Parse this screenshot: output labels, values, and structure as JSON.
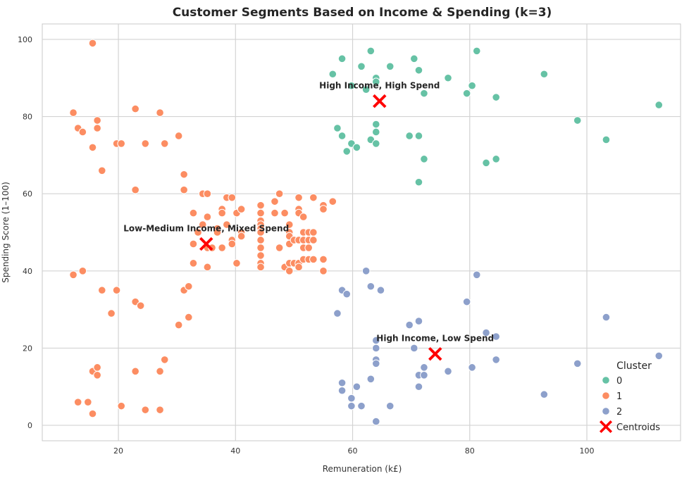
{
  "chart_data": {
    "type": "scatter",
    "title": "Customer Segments Based on Income & Spending (k=3)",
    "xlabel": "Remuneration (k£)",
    "ylabel": "Spending Score (1–100)",
    "xlim": [
      7,
      116
    ],
    "ylim": [
      -4,
      104
    ],
    "xticks": [
      20,
      40,
      60,
      80,
      100
    ],
    "yticks": [
      0,
      20,
      40,
      60,
      80,
      100
    ],
    "grid": true,
    "legend": {
      "title": "Cluster",
      "placement": "bottom-right",
      "entries": [
        {
          "label": "0",
          "color": "#66c2a5",
          "marker": "circle"
        },
        {
          "label": "1",
          "color": "#fc8d62",
          "marker": "circle"
        },
        {
          "label": "2",
          "color": "#8da0cb",
          "marker": "circle"
        },
        {
          "label": "Centroids",
          "color": "#ff0000",
          "marker": "x"
        }
      ]
    },
    "series": [
      {
        "name": "0",
        "color": "#66c2a5",
        "points": [
          [
            56.6,
            91
          ],
          [
            58.2,
            95
          ],
          [
            59.8,
            88
          ],
          [
            61.5,
            93
          ],
          [
            63.1,
            97
          ],
          [
            64.0,
            90
          ],
          [
            64.0,
            89
          ],
          [
            62.3,
            87
          ],
          [
            66.4,
            93
          ],
          [
            70.5,
            95
          ],
          [
            71.3,
            92
          ],
          [
            72.2,
            86
          ],
          [
            76.3,
            90
          ],
          [
            79.5,
            86
          ],
          [
            80.4,
            88
          ],
          [
            81.2,
            97
          ],
          [
            84.5,
            85
          ],
          [
            92.7,
            91
          ],
          [
            98.4,
            79
          ],
          [
            103.3,
            74
          ],
          [
            112.3,
            83
          ],
          [
            57.4,
            77
          ],
          [
            58.2,
            75
          ],
          [
            59.0,
            71
          ],
          [
            59.8,
            73
          ],
          [
            60.7,
            72
          ],
          [
            63.1,
            74
          ],
          [
            64.0,
            73
          ],
          [
            64.0,
            76
          ],
          [
            64.0,
            78
          ],
          [
            69.7,
            75
          ],
          [
            71.3,
            75
          ],
          [
            71.3,
            63
          ],
          [
            72.2,
            69
          ],
          [
            82.8,
            68
          ],
          [
            84.5,
            69
          ]
        ]
      },
      {
        "name": "1",
        "color": "#fc8d62",
        "points": [
          [
            12.3,
            81
          ],
          [
            13.1,
            77
          ],
          [
            13.9,
            76
          ],
          [
            15.6,
            99
          ],
          [
            16.4,
            79
          ],
          [
            16.4,
            77
          ],
          [
            15.6,
            72
          ],
          [
            17.2,
            66
          ],
          [
            19.7,
            73
          ],
          [
            20.5,
            73
          ],
          [
            22.9,
            82
          ],
          [
            24.6,
            73
          ],
          [
            27.1,
            81
          ],
          [
            27.9,
            73
          ],
          [
            30.3,
            75
          ],
          [
            31.2,
            65
          ],
          [
            31.2,
            61
          ],
          [
            22.9,
            61
          ],
          [
            32.8,
            55
          ],
          [
            34.4,
            60
          ],
          [
            35.2,
            60
          ],
          [
            34.4,
            52
          ],
          [
            35.2,
            54
          ],
          [
            36.9,
            51
          ],
          [
            37.7,
            56
          ],
          [
            37.7,
            55
          ],
          [
            38.5,
            59
          ],
          [
            39.4,
            59
          ],
          [
            40.2,
            55
          ],
          [
            41.0,
            56
          ],
          [
            38.5,
            52
          ],
          [
            39.4,
            48
          ],
          [
            39.4,
            47
          ],
          [
            37.7,
            46
          ],
          [
            35.2,
            46
          ],
          [
            36.0,
            46
          ],
          [
            33.6,
            50
          ],
          [
            32.8,
            47
          ],
          [
            32.8,
            42
          ],
          [
            35.2,
            41
          ],
          [
            36.9,
            50
          ],
          [
            40.2,
            42
          ],
          [
            41.0,
            50
          ],
          [
            41.0,
            49
          ],
          [
            44.3,
            57
          ],
          [
            44.3,
            55
          ],
          [
            44.3,
            53
          ],
          [
            44.3,
            52
          ],
          [
            44.3,
            51
          ],
          [
            44.3,
            50
          ],
          [
            44.3,
            48
          ],
          [
            44.3,
            46
          ],
          [
            44.3,
            44
          ],
          [
            44.3,
            42
          ],
          [
            44.3,
            41
          ],
          [
            46.7,
            58
          ],
          [
            46.7,
            55
          ],
          [
            47.5,
            60
          ],
          [
            48.4,
            55
          ],
          [
            47.5,
            46
          ],
          [
            48.4,
            41
          ],
          [
            49.2,
            52
          ],
          [
            49.2,
            50
          ],
          [
            49.2,
            49
          ],
          [
            49.2,
            47
          ],
          [
            49.2,
            42
          ],
          [
            49.2,
            40
          ],
          [
            50.0,
            48
          ],
          [
            50.0,
            42
          ],
          [
            50.8,
            59
          ],
          [
            50.8,
            56
          ],
          [
            50.8,
            55
          ],
          [
            50.8,
            48
          ],
          [
            50.8,
            42
          ],
          [
            50.8,
            41
          ],
          [
            51.6,
            54
          ],
          [
            51.6,
            50
          ],
          [
            51.6,
            48
          ],
          [
            51.6,
            46
          ],
          [
            51.6,
            43
          ],
          [
            52.5,
            50
          ],
          [
            52.5,
            48
          ],
          [
            52.5,
            46
          ],
          [
            52.5,
            43
          ],
          [
            53.3,
            59
          ],
          [
            53.3,
            50
          ],
          [
            53.3,
            48
          ],
          [
            53.3,
            43
          ],
          [
            55.0,
            57
          ],
          [
            55.0,
            56
          ],
          [
            55.0,
            43
          ],
          [
            55.0,
            40
          ],
          [
            56.6,
            58
          ],
          [
            12.3,
            39
          ],
          [
            13.9,
            40
          ],
          [
            17.2,
            35
          ],
          [
            19.7,
            35
          ],
          [
            18.8,
            29
          ],
          [
            22.9,
            32
          ],
          [
            23.8,
            31
          ],
          [
            31.2,
            35
          ],
          [
            32.0,
            36
          ],
          [
            30.3,
            26
          ],
          [
            32.0,
            28
          ],
          [
            15.6,
            14
          ],
          [
            16.4,
            15
          ],
          [
            16.4,
            13
          ],
          [
            22.9,
            14
          ],
          [
            27.1,
            14
          ],
          [
            27.9,
            17
          ],
          [
            13.1,
            6
          ],
          [
            14.8,
            6
          ],
          [
            15.6,
            3
          ],
          [
            20.5,
            5
          ],
          [
            24.6,
            4
          ],
          [
            27.1,
            4
          ]
        ]
      },
      {
        "name": "2",
        "color": "#8da0cb",
        "points": [
          [
            62.3,
            40
          ],
          [
            81.2,
            39
          ],
          [
            58.2,
            35
          ],
          [
            59.0,
            34
          ],
          [
            63.1,
            36
          ],
          [
            64.8,
            35
          ],
          [
            57.4,
            29
          ],
          [
            79.5,
            32
          ],
          [
            103.3,
            28
          ],
          [
            69.7,
            26
          ],
          [
            71.3,
            27
          ],
          [
            64.0,
            22
          ],
          [
            64.0,
            20
          ],
          [
            70.5,
            20
          ],
          [
            82.8,
            24
          ],
          [
            84.5,
            23
          ],
          [
            64.0,
            17
          ],
          [
            64.0,
            16
          ],
          [
            63.1,
            12
          ],
          [
            71.3,
            13
          ],
          [
            72.2,
            15
          ],
          [
            72.2,
            13
          ],
          [
            76.3,
            14
          ],
          [
            80.4,
            15
          ],
          [
            84.5,
            17
          ],
          [
            98.4,
            16
          ],
          [
            112.3,
            18
          ],
          [
            58.2,
            11
          ],
          [
            58.2,
            9
          ],
          [
            59.8,
            7
          ],
          [
            60.7,
            10
          ],
          [
            59.8,
            5
          ],
          [
            61.5,
            5
          ],
          [
            66.4,
            5
          ],
          [
            71.3,
            10
          ],
          [
            92.7,
            8
          ],
          [
            64.0,
            1
          ]
        ]
      }
    ],
    "centroids": {
      "name": "Centroids",
      "color": "#ff0000",
      "points": [
        [
          64.6,
          84
        ],
        [
          35.0,
          47
        ],
        [
          74.1,
          18.5
        ]
      ]
    },
    "annotations": [
      {
        "text": "High Income, High Spend",
        "x": 64.6,
        "y": 84
      },
      {
        "text": "Low-Medium Income, Mixed Spend",
        "x": 35.0,
        "y": 47
      },
      {
        "text": "High Income, Low Spend",
        "x": 74.1,
        "y": 18.5
      }
    ]
  }
}
